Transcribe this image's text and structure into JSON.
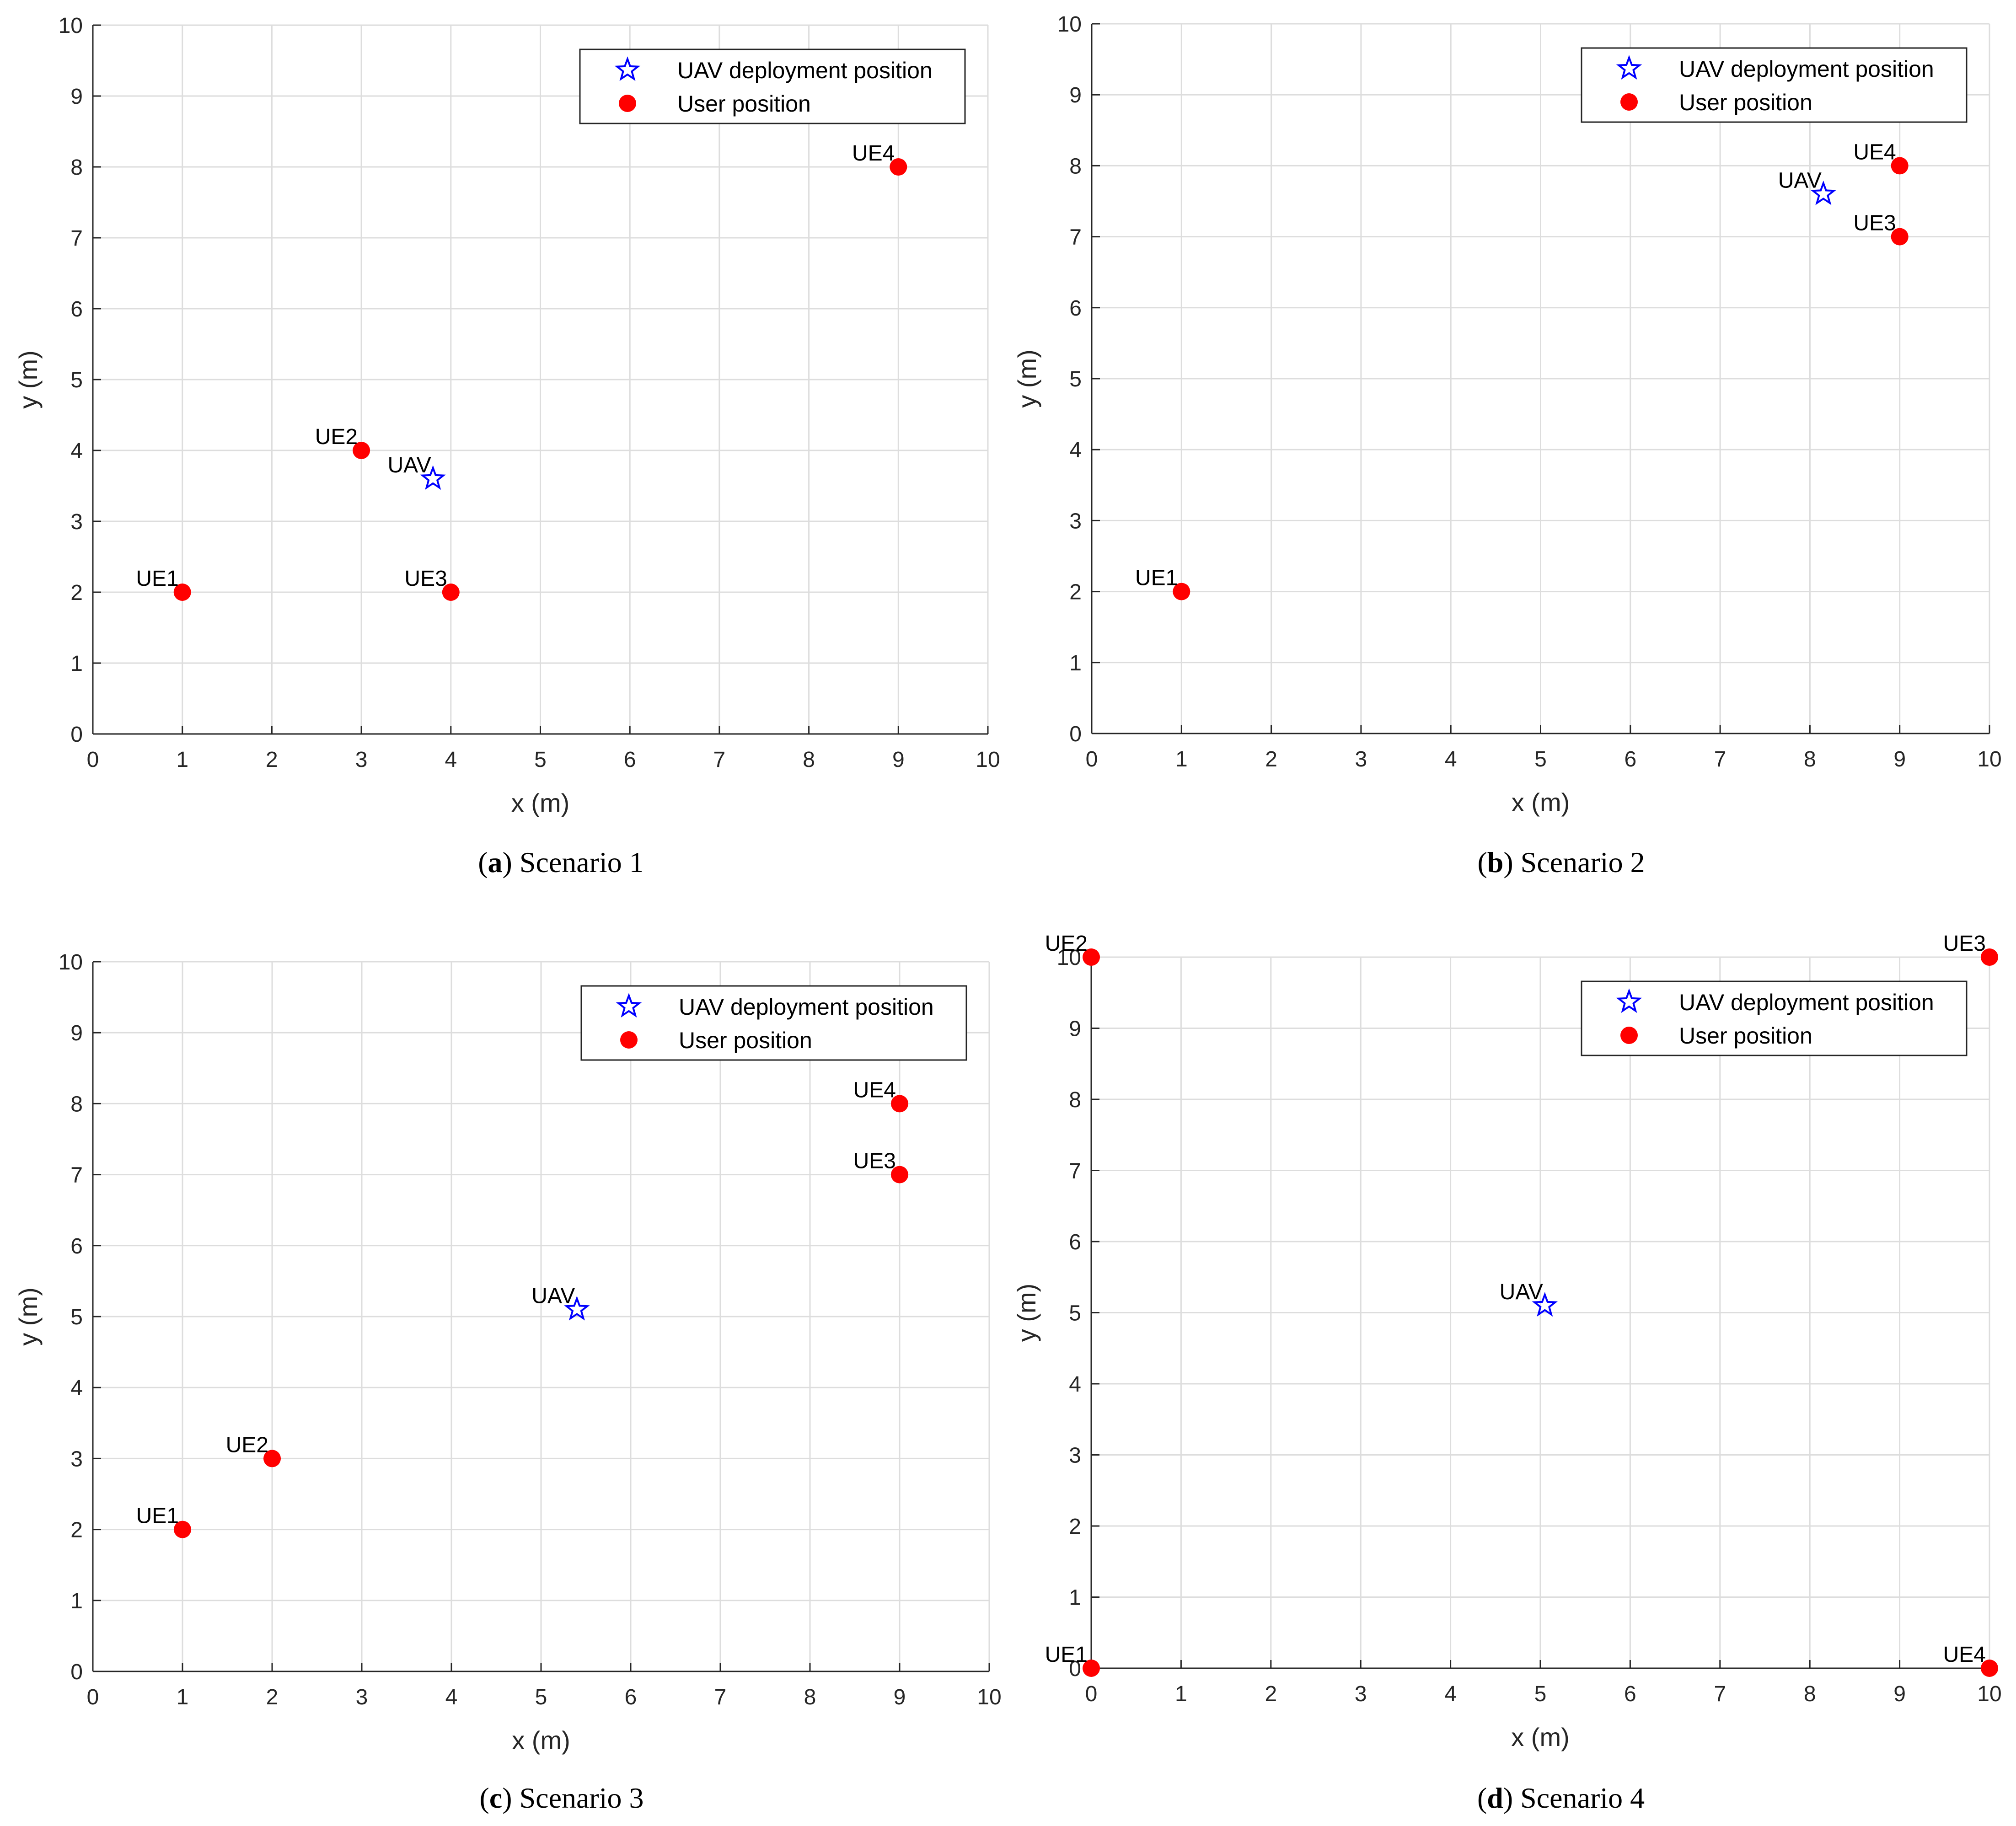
{
  "colors": {
    "uav": "#0000ff",
    "user": "#ff0000",
    "grid": "#dddddd",
    "axis": "#262626"
  },
  "legend": {
    "uav_label": "UAV deployment position",
    "user_label": "User position"
  },
  "chart_data": [
    {
      "type": "scatter",
      "caption_letter": "a",
      "caption_text": "Scenario 1",
      "xlabel": "x (m)",
      "ylabel": "y (m)",
      "xlim": [
        0,
        10
      ],
      "ylim": [
        0,
        10
      ],
      "xticks": [
        0,
        1,
        2,
        3,
        4,
        5,
        6,
        7,
        8,
        9,
        10
      ],
      "yticks": [
        0,
        1,
        2,
        3,
        4,
        5,
        6,
        7,
        8,
        9,
        10
      ],
      "grid": true,
      "legend_position": "top-right",
      "uav": {
        "label": "UAV",
        "x": 3.8,
        "y": 3.6
      },
      "users": [
        {
          "label": "UE1",
          "x": 1,
          "y": 2
        },
        {
          "label": "UE2",
          "x": 3,
          "y": 4
        },
        {
          "label": "UE3",
          "x": 4,
          "y": 2
        },
        {
          "label": "UE4",
          "x": 9,
          "y": 8
        }
      ]
    },
    {
      "type": "scatter",
      "caption_letter": "b",
      "caption_text": "Scenario 2",
      "xlabel": "x (m)",
      "ylabel": "y (m)",
      "xlim": [
        0,
        10
      ],
      "ylim": [
        0,
        10
      ],
      "xticks": [
        0,
        1,
        2,
        3,
        4,
        5,
        6,
        7,
        8,
        9,
        10
      ],
      "yticks": [
        0,
        1,
        2,
        3,
        4,
        5,
        6,
        7,
        8,
        9,
        10
      ],
      "grid": true,
      "legend_position": "top-right",
      "uav": {
        "label": "UAV",
        "x": 8.15,
        "y": 7.6
      },
      "users": [
        {
          "label": "UE1",
          "x": 1,
          "y": 2
        },
        {
          "label": "UE3",
          "x": 9,
          "y": 7
        },
        {
          "label": "UE4",
          "x": 9,
          "y": 8
        }
      ]
    },
    {
      "type": "scatter",
      "caption_letter": "c",
      "caption_text": "Scenario 3",
      "xlabel": "x (m)",
      "ylabel": "y (m)",
      "xlim": [
        0,
        10
      ],
      "ylim": [
        0,
        10
      ],
      "xticks": [
        0,
        1,
        2,
        3,
        4,
        5,
        6,
        7,
        8,
        9,
        10
      ],
      "yticks": [
        0,
        1,
        2,
        3,
        4,
        5,
        6,
        7,
        8,
        9,
        10
      ],
      "grid": true,
      "legend_position": "top-right",
      "uav": {
        "label": "UAV",
        "x": 5.4,
        "y": 5.1
      },
      "users": [
        {
          "label": "UE1",
          "x": 1,
          "y": 2
        },
        {
          "label": "UE2",
          "x": 2,
          "y": 3
        },
        {
          "label": "UE3",
          "x": 9,
          "y": 7
        },
        {
          "label": "UE4",
          "x": 9,
          "y": 8
        }
      ]
    },
    {
      "type": "scatter",
      "caption_letter": "d",
      "caption_text": "Scenario 4",
      "xlabel": "x (m)",
      "ylabel": "y (m)",
      "xlim": [
        0,
        10
      ],
      "ylim": [
        0,
        10
      ],
      "xticks": [
        0,
        1,
        2,
        3,
        4,
        5,
        6,
        7,
        8,
        9,
        10
      ],
      "yticks": [
        0,
        1,
        2,
        3,
        4,
        5,
        6,
        7,
        8,
        9,
        10
      ],
      "grid": true,
      "legend_position": "top-right",
      "uav": {
        "label": "UAV",
        "x": 5.05,
        "y": 5.1
      },
      "users": [
        {
          "label": "UE1",
          "x": 0,
          "y": 0
        },
        {
          "label": "UE2",
          "x": 0,
          "y": 10
        },
        {
          "label": "UE3",
          "x": 10,
          "y": 10
        },
        {
          "label": "UE4",
          "x": 10,
          "y": 0
        }
      ]
    }
  ]
}
